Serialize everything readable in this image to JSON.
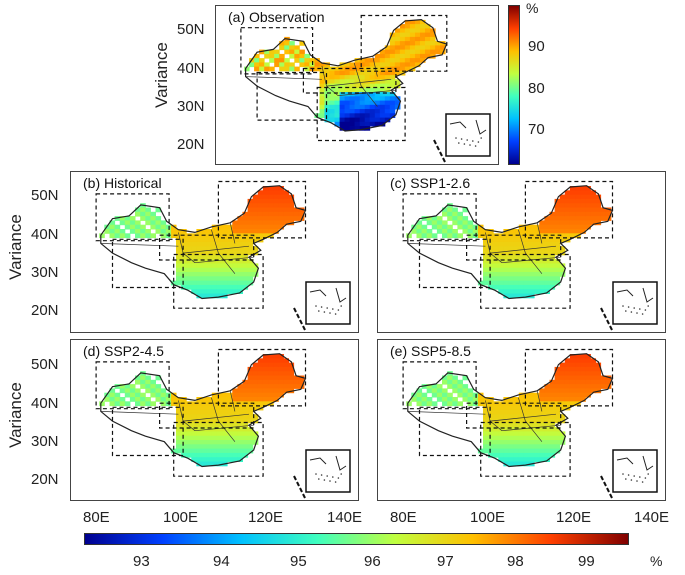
{
  "ylabel": "Variance",
  "lat_ticks": [
    "50N",
    "40N",
    "30N",
    "20N"
  ],
  "lon_ticks": [
    "80E",
    "100E",
    "120E",
    "140E"
  ],
  "panels": [
    {
      "id": "a",
      "title": "(a) Observation",
      "scheme": "obs"
    },
    {
      "id": "b",
      "title": "(b) Historical",
      "scheme": "model"
    },
    {
      "id": "c",
      "title": "(c) SSP1-2.6",
      "scheme": "model"
    },
    {
      "id": "d",
      "title": "(d) SSP2-4.5",
      "scheme": "model"
    },
    {
      "id": "e",
      "title": "(e) SSP5-8.5",
      "scheme": "model"
    }
  ],
  "colorbar_obs": {
    "unit": "%",
    "ticks": [
      "90",
      "80",
      "70"
    ],
    "min": 61,
    "max": 100,
    "colors": [
      "#00008f",
      "#0040ff",
      "#00c0ff",
      "#40ffbf",
      "#c0ff40",
      "#ffc000",
      "#ff4000",
      "#800000"
    ]
  },
  "colorbar_model": {
    "unit": "%",
    "ticks": [
      "93",
      "94",
      "95",
      "96",
      "97",
      "98",
      "99"
    ],
    "min": 92.5,
    "max": 99.8,
    "colors": [
      "#00008f",
      "#0040ff",
      "#00c0ff",
      "#40ffbf",
      "#c0ff40",
      "#ffc000",
      "#ff4000",
      "#800000"
    ]
  }
}
